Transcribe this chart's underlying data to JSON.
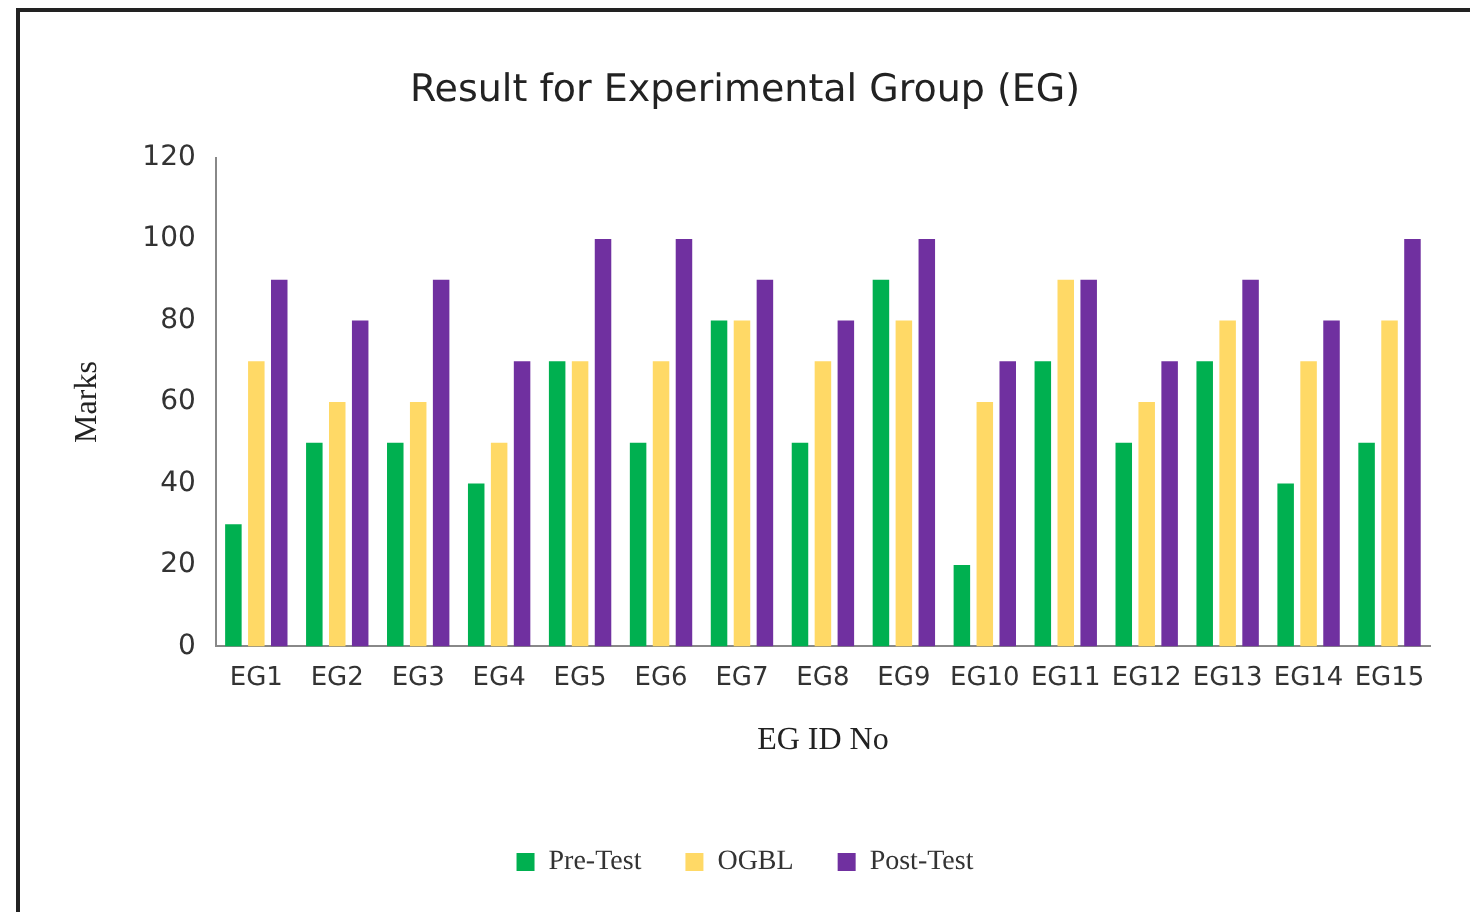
{
  "chart_data": {
    "type": "bar",
    "title": "Result for Experimental Group (EG)",
    "xlabel": "EG ID No",
    "ylabel": "Marks",
    "categories": [
      "EG1",
      "EG2",
      "EG3",
      "EG4",
      "EG5",
      "EG6",
      "EG7",
      "EG8",
      "EG9",
      "EG10",
      "EG11",
      "EG12",
      "EG13",
      "EG14",
      "EG15"
    ],
    "series": [
      {
        "name": "Pre-Test",
        "color": "#00b050",
        "values": [
          30,
          50,
          50,
          40,
          70,
          50,
          80,
          50,
          90,
          20,
          70,
          50,
          70,
          40,
          50
        ]
      },
      {
        "name": "OGBL",
        "color": "#ffd966",
        "values": [
          70,
          60,
          60,
          50,
          70,
          70,
          80,
          70,
          80,
          60,
          90,
          60,
          80,
          70,
          80
        ]
      },
      {
        "name": "Post-Test",
        "color": "#7030a0",
        "values": [
          90,
          80,
          90,
          70,
          100,
          100,
          90,
          80,
          100,
          70,
          90,
          70,
          90,
          80,
          100
        ]
      }
    ],
    "ylim": [
      0,
      120
    ],
    "yticks": [
      0,
      20,
      40,
      60,
      80,
      100,
      120
    ],
    "grid": false,
    "legend": "bottom"
  }
}
